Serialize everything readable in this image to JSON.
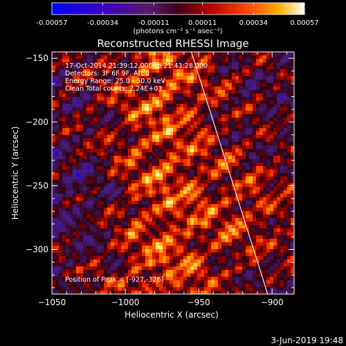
{
  "colorbar": {
    "ticks": [
      "-0.00057",
      "-0.00034",
      "-0.00011",
      "0.00011",
      "0.00034",
      "0.00057"
    ],
    "units": "(photons cm⁻² s⁻¹ asec⁻²)"
  },
  "chart_data": {
    "type": "heatmap",
    "title": "Reconstructed RHESSI Image",
    "xlabel": "Heliocentric X (arcsec)",
    "ylabel": "Heliocentric Y (arcsec)",
    "xlim": [
      -1050,
      -885
    ],
    "ylim": [
      -335,
      -145
    ],
    "x_ticks": [
      "−1050",
      "−1000",
      "−950",
      "−900"
    ],
    "y_ticks": [
      "−150",
      "−200",
      "−250",
      "−300"
    ],
    "colorbar_range": [
      -0.00057,
      0.00057
    ],
    "peak": [
      -927,
      -326
    ],
    "limb_line": [
      [
        -955,
        -145
      ],
      [
        -903,
        -335
      ]
    ],
    "annotations": {
      "time_range": "17-Oct-2014 21:39:12.000 to 21:43:28.000",
      "detectors": "Detectors: 3F 6F 9F, Att 0",
      "energy_range": "Energy Range: 25.0 - 50.0 keV",
      "clean": "Clean    Total counts: 2.24E+03",
      "peak_text": "Position of Peak = [-927,-326]"
    },
    "footer_date": "3-Jun-2019 19:48"
  }
}
